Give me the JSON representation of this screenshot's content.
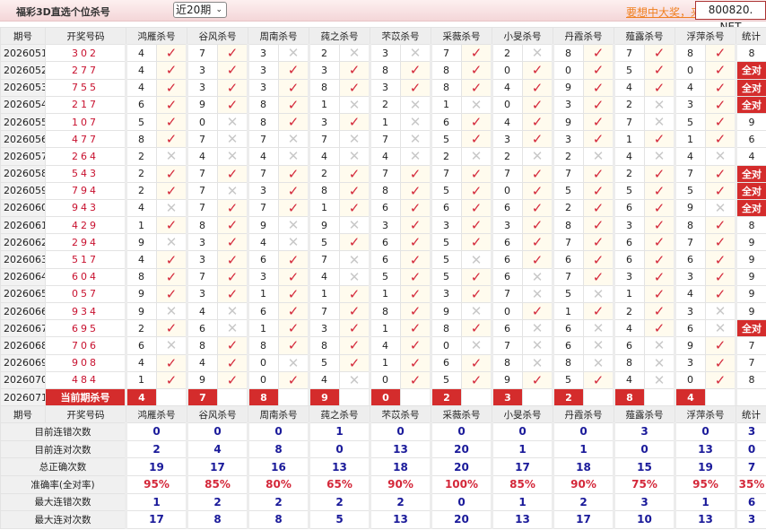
{
  "header": {
    "title": "福彩3D直选个位杀号",
    "period_select": "近20期",
    "promo_link": "要想中大奖，来",
    "site": "800820. NET"
  },
  "columns": {
    "issue": "期号",
    "draw": "开奖号码",
    "stat": "统计",
    "experts": [
      "鸿雁杀号",
      "谷风杀号",
      "周南杀号",
      "莼之杀号",
      "芣苡杀号",
      "采薇杀号",
      "小旻杀号",
      "丹霞杀号",
      "薤露杀号",
      "浮萍杀号"
    ]
  },
  "colors": {
    "hit": "#d4283a",
    "miss": "#c8c8c8",
    "badge": "#d42c2c"
  },
  "icons": {
    "hit": "check-icon",
    "miss": "cross-icon"
  },
  "rows": [
    {
      "issue": "2026051",
      "draw": "302",
      "kills": [
        4,
        7,
        3,
        2,
        3,
        7,
        2,
        8,
        7,
        8
      ],
      "stat": "8"
    },
    {
      "issue": "2026052",
      "draw": "277",
      "kills": [
        4,
        3,
        3,
        3,
        8,
        8,
        0,
        0,
        5,
        0
      ],
      "stat": "全对"
    },
    {
      "issue": "2026053",
      "draw": "755",
      "kills": [
        4,
        3,
        3,
        8,
        3,
        8,
        4,
        9,
        4,
        4
      ],
      "stat": "全对"
    },
    {
      "issue": "2026054",
      "draw": "217",
      "kills": [
        6,
        9,
        8,
        1,
        2,
        1,
        0,
        3,
        2,
        3
      ],
      "stat": "全对"
    },
    {
      "issue": "2026055",
      "draw": "107",
      "kills": [
        5,
        0,
        8,
        3,
        1,
        6,
        4,
        9,
        7,
        5
      ],
      "stat": "9"
    },
    {
      "issue": "2026056",
      "draw": "477",
      "kills": [
        8,
        7,
        7,
        7,
        7,
        5,
        3,
        3,
        1,
        1
      ],
      "stat": "6"
    },
    {
      "issue": "2026057",
      "draw": "264",
      "kills": [
        2,
        4,
        4,
        4,
        4,
        2,
        2,
        2,
        4,
        4
      ],
      "stat": "4"
    },
    {
      "issue": "2026058",
      "draw": "543",
      "kills": [
        2,
        7,
        7,
        2,
        7,
        7,
        7,
        7,
        2,
        7
      ],
      "stat": "全对"
    },
    {
      "issue": "2026059",
      "draw": "794",
      "kills": [
        2,
        7,
        3,
        8,
        8,
        5,
        0,
        5,
        5,
        5
      ],
      "stat": "全对"
    },
    {
      "issue": "2026060",
      "draw": "943",
      "kills": [
        4,
        7,
        7,
        1,
        6,
        6,
        6,
        2,
        6,
        9
      ],
      "stat": "全对"
    },
    {
      "issue": "2026061",
      "draw": "429",
      "kills": [
        1,
        8,
        9,
        9,
        3,
        3,
        3,
        8,
        3,
        8
      ],
      "stat": "8"
    },
    {
      "issue": "2026062",
      "draw": "294",
      "kills": [
        9,
        3,
        4,
        5,
        6,
        5,
        6,
        7,
        6,
        7
      ],
      "stat": "9"
    },
    {
      "issue": "2026063",
      "draw": "517",
      "kills": [
        4,
        3,
        6,
        7,
        6,
        5,
        6,
        6,
        6,
        6
      ],
      "stat": "9"
    },
    {
      "issue": "2026064",
      "draw": "604",
      "kills": [
        8,
        7,
        3,
        4,
        5,
        5,
        6,
        7,
        3,
        3
      ],
      "stat": "9"
    },
    {
      "issue": "2026065",
      "draw": "057",
      "kills": [
        9,
        3,
        1,
        1,
        1,
        3,
        7,
        5,
        1,
        4
      ],
      "stat": "9"
    },
    {
      "issue": "2026066",
      "draw": "934",
      "kills": [
        9,
        4,
        6,
        7,
        8,
        9,
        0,
        1,
        2,
        3
      ],
      "stat": "9"
    },
    {
      "issue": "2026067",
      "draw": "695",
      "kills": [
        2,
        6,
        1,
        3,
        1,
        8,
        6,
        6,
        4,
        6
      ],
      "stat": "全对"
    },
    {
      "issue": "2026068",
      "draw": "706",
      "kills": [
        6,
        8,
        8,
        8,
        4,
        0,
        7,
        6,
        6,
        9
      ],
      "stat": "7"
    },
    {
      "issue": "2026069",
      "draw": "908",
      "kills": [
        4,
        4,
        0,
        5,
        1,
        6,
        8,
        8,
        8,
        3
      ],
      "stat": "7"
    },
    {
      "issue": "2026070",
      "draw": "484",
      "kills": [
        1,
        9,
        0,
        4,
        0,
        5,
        9,
        5,
        4,
        0
      ],
      "stat": "8"
    }
  ],
  "current": {
    "issue": "2026071",
    "label": "当前期杀号",
    "kills": [
      4,
      7,
      8,
      9,
      0,
      2,
      3,
      2,
      8,
      4
    ]
  },
  "summary": [
    {
      "label": "目前连错次数",
      "values": [
        "0",
        "0",
        "0",
        "1",
        "0",
        "0",
        "0",
        "0",
        "3",
        "0"
      ],
      "stat": "3"
    },
    {
      "label": "目前连对次数",
      "values": [
        "2",
        "4",
        "8",
        "0",
        "13",
        "20",
        "1",
        "1",
        "0",
        "13"
      ],
      "stat": "0"
    },
    {
      "label": "总正确次数",
      "values": [
        "19",
        "17",
        "16",
        "13",
        "18",
        "20",
        "17",
        "18",
        "15",
        "19"
      ],
      "stat": "7"
    },
    {
      "label": "准确率(全对率)",
      "values": [
        "95%",
        "85%",
        "80%",
        "65%",
        "90%",
        "100%",
        "85%",
        "90%",
        "75%",
        "95%"
      ],
      "stat": "35%"
    },
    {
      "label": "最大连错次数",
      "values": [
        "1",
        "2",
        "2",
        "2",
        "2",
        "0",
        "1",
        "2",
        "3",
        "1"
      ],
      "stat": "6"
    },
    {
      "label": "最大连对次数",
      "values": [
        "17",
        "8",
        "8",
        "5",
        "13",
        "20",
        "13",
        "17",
        "10",
        "13"
      ],
      "stat": "3"
    }
  ]
}
